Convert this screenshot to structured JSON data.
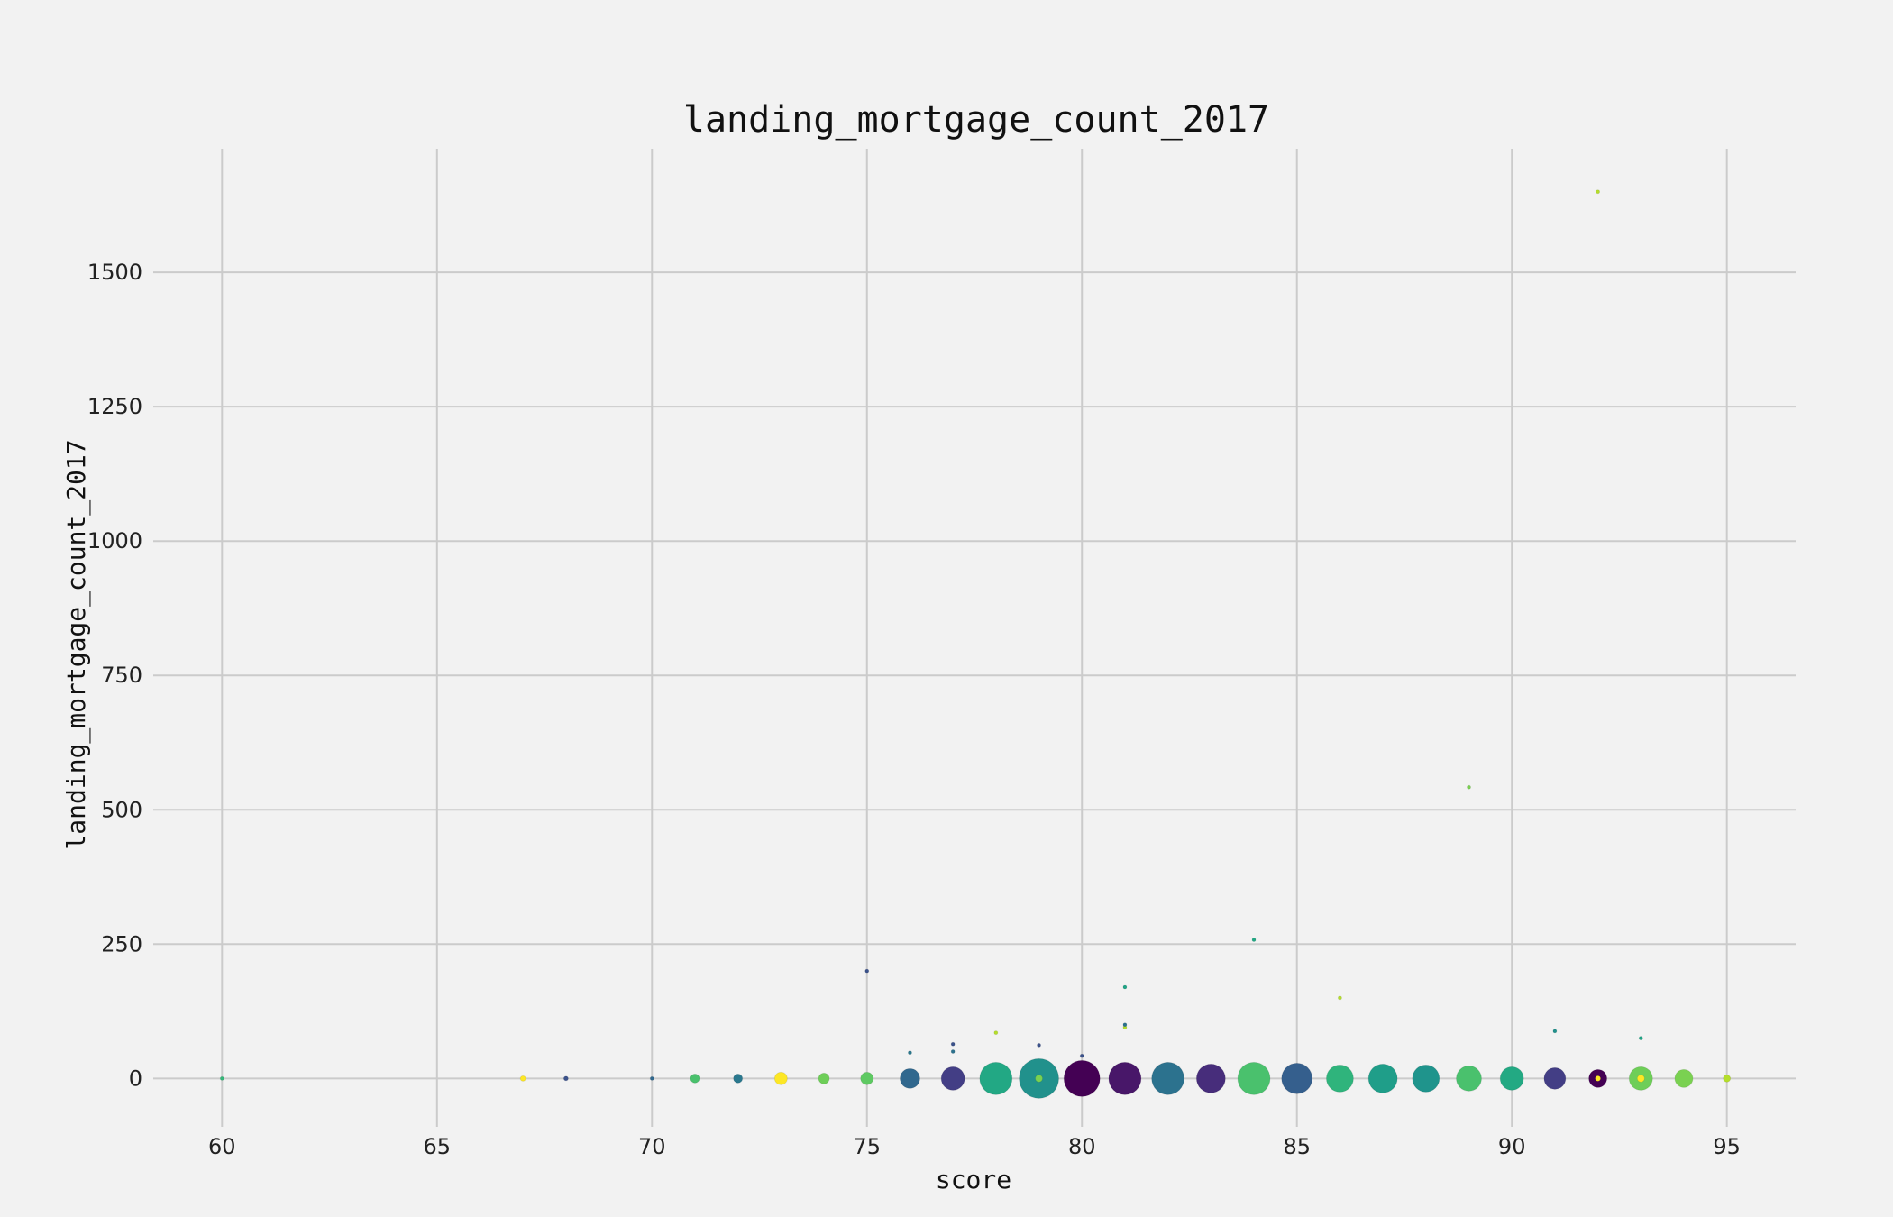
{
  "chart_data": {
    "type": "scatter",
    "title": "landing_mortgage_count_2017",
    "xlabel": "score",
    "ylabel": "landing_mortgage_count_2017",
    "xlim": [
      58.4,
      96.6
    ],
    "ylim": [
      -90,
      1730
    ],
    "xticks": [
      60,
      65,
      70,
      75,
      80,
      85,
      90,
      95
    ],
    "yticks": [
      0,
      250,
      500,
      750,
      1000,
      1250,
      1500
    ],
    "grid": true,
    "points": [
      {
        "x": 60,
        "y": 0,
        "r": 2,
        "color": "#35b779"
      },
      {
        "x": 67,
        "y": 0,
        "r": 3,
        "color": "#fde725"
      },
      {
        "x": 68,
        "y": 0,
        "r": 2.5,
        "color": "#3b528b"
      },
      {
        "x": 70,
        "y": 0,
        "r": 2,
        "color": "#31688e"
      },
      {
        "x": 71,
        "y": 0,
        "r": 5,
        "color": "#4ac16d"
      },
      {
        "x": 72,
        "y": 0,
        "r": 5,
        "color": "#2a788e"
      },
      {
        "x": 73,
        "y": 0,
        "r": 7,
        "color": "#fde725"
      },
      {
        "x": 74,
        "y": 0,
        "r": 6,
        "color": "#6ece58"
      },
      {
        "x": 75,
        "y": 0,
        "r": 7,
        "color": "#5ec962"
      },
      {
        "x": 75,
        "y": 200,
        "r": 2,
        "color": "#3b528b"
      },
      {
        "x": 76,
        "y": 0,
        "r": 11,
        "color": "#31688e"
      },
      {
        "x": 76,
        "y": 48,
        "r": 2,
        "color": "#2a788e"
      },
      {
        "x": 77,
        "y": 0,
        "r": 13,
        "color": "#433e85"
      },
      {
        "x": 77,
        "y": 50,
        "r": 2,
        "color": "#2c728e"
      },
      {
        "x": 77,
        "y": 64,
        "r": 2,
        "color": "#3b528b"
      },
      {
        "x": 78,
        "y": 0,
        "r": 18,
        "color": "#22a884"
      },
      {
        "x": 78,
        "y": 85,
        "r": 2,
        "color": "#b5de2b"
      },
      {
        "x": 79,
        "y": 0,
        "r": 22,
        "color": "#21918c"
      },
      {
        "x": 79,
        "y": 0,
        "r": 4,
        "color": "#7ad151"
      },
      {
        "x": 79,
        "y": 62,
        "r": 2,
        "color": "#3b528b"
      },
      {
        "x": 80,
        "y": 0,
        "r": 20,
        "color": "#440154"
      },
      {
        "x": 80,
        "y": 42,
        "r": 2,
        "color": "#3b528b"
      },
      {
        "x": 81,
        "y": 0,
        "r": 18,
        "color": "#481769"
      },
      {
        "x": 81,
        "y": 95,
        "r": 2,
        "color": "#b5de2b"
      },
      {
        "x": 81,
        "y": 100,
        "r": 2,
        "color": "#2c728e"
      },
      {
        "x": 81,
        "y": 170,
        "r": 2,
        "color": "#20a486"
      },
      {
        "x": 82,
        "y": 0,
        "r": 18,
        "color": "#2c728e"
      },
      {
        "x": 83,
        "y": 0,
        "r": 16,
        "color": "#472d7b"
      },
      {
        "x": 84,
        "y": 0,
        "r": 18,
        "color": "#4ac16d"
      },
      {
        "x": 84,
        "y": 258,
        "r": 2,
        "color": "#22a884"
      },
      {
        "x": 85,
        "y": 0,
        "r": 17,
        "color": "#355f8d"
      },
      {
        "x": 86,
        "y": 0,
        "r": 15,
        "color": "#2fb47c"
      },
      {
        "x": 86,
        "y": 150,
        "r": 2,
        "color": "#b5de2b"
      },
      {
        "x": 87,
        "y": 0,
        "r": 16,
        "color": "#1f9e89"
      },
      {
        "x": 88,
        "y": 0,
        "r": 15,
        "color": "#1f948c"
      },
      {
        "x": 89,
        "y": 0,
        "r": 14,
        "color": "#4ac16d"
      },
      {
        "x": 89,
        "y": 542,
        "r": 2,
        "color": "#7ad151"
      },
      {
        "x": 90,
        "y": 0,
        "r": 13,
        "color": "#23a983"
      },
      {
        "x": 91,
        "y": 0,
        "r": 12,
        "color": "#433e85"
      },
      {
        "x": 91,
        "y": 88,
        "r": 2,
        "color": "#21918c"
      },
      {
        "x": 92,
        "y": 0,
        "r": 10,
        "color": "#440154"
      },
      {
        "x": 92,
        "y": 0,
        "r": 3,
        "color": "#fde725"
      },
      {
        "x": 92,
        "y": 1650,
        "r": 2,
        "color": "#b5de2b"
      },
      {
        "x": 93,
        "y": 0,
        "r": 13,
        "color": "#6ece58"
      },
      {
        "x": 93,
        "y": 0,
        "r": 4,
        "color": "#fde725"
      },
      {
        "x": 93,
        "y": 75,
        "r": 2,
        "color": "#20a486"
      },
      {
        "x": 94,
        "y": 0,
        "r": 10,
        "color": "#7ad151"
      },
      {
        "x": 95,
        "y": 0,
        "r": 4,
        "color": "#b5de2b"
      }
    ]
  }
}
